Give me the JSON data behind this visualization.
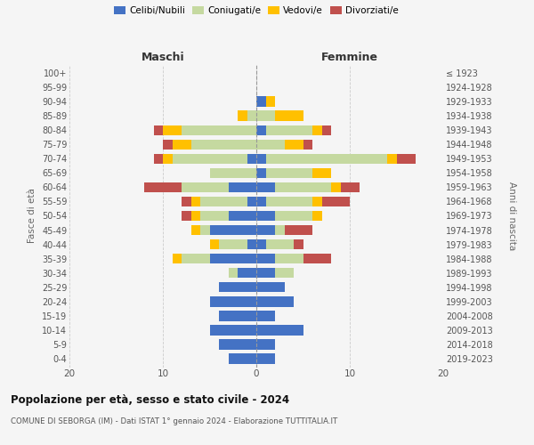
{
  "age_groups": [
    "100+",
    "95-99",
    "90-94",
    "85-89",
    "80-84",
    "75-79",
    "70-74",
    "65-69",
    "60-64",
    "55-59",
    "50-54",
    "45-49",
    "40-44",
    "35-39",
    "30-34",
    "25-29",
    "20-24",
    "15-19",
    "10-14",
    "5-9",
    "0-4"
  ],
  "birth_years": [
    "≤ 1923",
    "1924-1928",
    "1929-1933",
    "1934-1938",
    "1939-1943",
    "1944-1948",
    "1949-1953",
    "1954-1958",
    "1959-1963",
    "1964-1968",
    "1969-1973",
    "1974-1978",
    "1979-1983",
    "1984-1988",
    "1989-1993",
    "1994-1998",
    "1999-2003",
    "2004-2008",
    "2009-2013",
    "2014-2018",
    "2019-2023"
  ],
  "maschi": {
    "celibi": [
      0,
      0,
      0,
      0,
      0,
      0,
      1,
      0,
      3,
      1,
      3,
      5,
      1,
      5,
      2,
      4,
      5,
      4,
      5,
      4,
      3
    ],
    "coniugati": [
      0,
      0,
      0,
      1,
      8,
      7,
      8,
      5,
      5,
      5,
      3,
      1,
      3,
      3,
      1,
      0,
      0,
      0,
      0,
      0,
      0
    ],
    "vedovi": [
      0,
      0,
      0,
      1,
      2,
      2,
      1,
      0,
      0,
      1,
      1,
      1,
      1,
      1,
      0,
      0,
      0,
      0,
      0,
      0,
      0
    ],
    "divorziati": [
      0,
      0,
      0,
      0,
      1,
      1,
      1,
      0,
      4,
      1,
      1,
      0,
      0,
      0,
      0,
      0,
      0,
      0,
      0,
      0,
      0
    ]
  },
  "femmine": {
    "nubili": [
      0,
      0,
      1,
      0,
      1,
      0,
      1,
      1,
      2,
      1,
      2,
      2,
      1,
      2,
      2,
      3,
      4,
      2,
      5,
      2,
      2
    ],
    "coniugate": [
      0,
      0,
      0,
      2,
      5,
      3,
      13,
      5,
      6,
      5,
      4,
      1,
      3,
      3,
      2,
      0,
      0,
      0,
      0,
      0,
      0
    ],
    "vedove": [
      0,
      0,
      1,
      3,
      1,
      2,
      1,
      2,
      1,
      1,
      1,
      0,
      0,
      0,
      0,
      0,
      0,
      0,
      0,
      0,
      0
    ],
    "divorziate": [
      0,
      0,
      0,
      0,
      1,
      1,
      2,
      0,
      2,
      3,
      0,
      3,
      1,
      3,
      0,
      0,
      0,
      0,
      0,
      0,
      0
    ]
  },
  "colors": {
    "celibi": "#4472c4",
    "coniugati": "#c5d9a0",
    "vedovi": "#ffc000",
    "divorziati": "#c0504d"
  },
  "xlim": 20,
  "title": "Popolazione per età, sesso e stato civile - 2024",
  "subtitle": "COMUNE DI SEBORGA (IM) - Dati ISTAT 1° gennaio 2024 - Elaborazione TUTTITALIA.IT",
  "ylabel_left": "Fasce di età",
  "ylabel_right": "Anni di nascita",
  "xlabel_left": "Maschi",
  "xlabel_right": "Femmine",
  "legend_labels": [
    "Celibi/Nubili",
    "Coniugati/e",
    "Vedovi/e",
    "Divorziati/e"
  ],
  "background_color": "#f5f5f5",
  "grid_color": "#cccccc"
}
